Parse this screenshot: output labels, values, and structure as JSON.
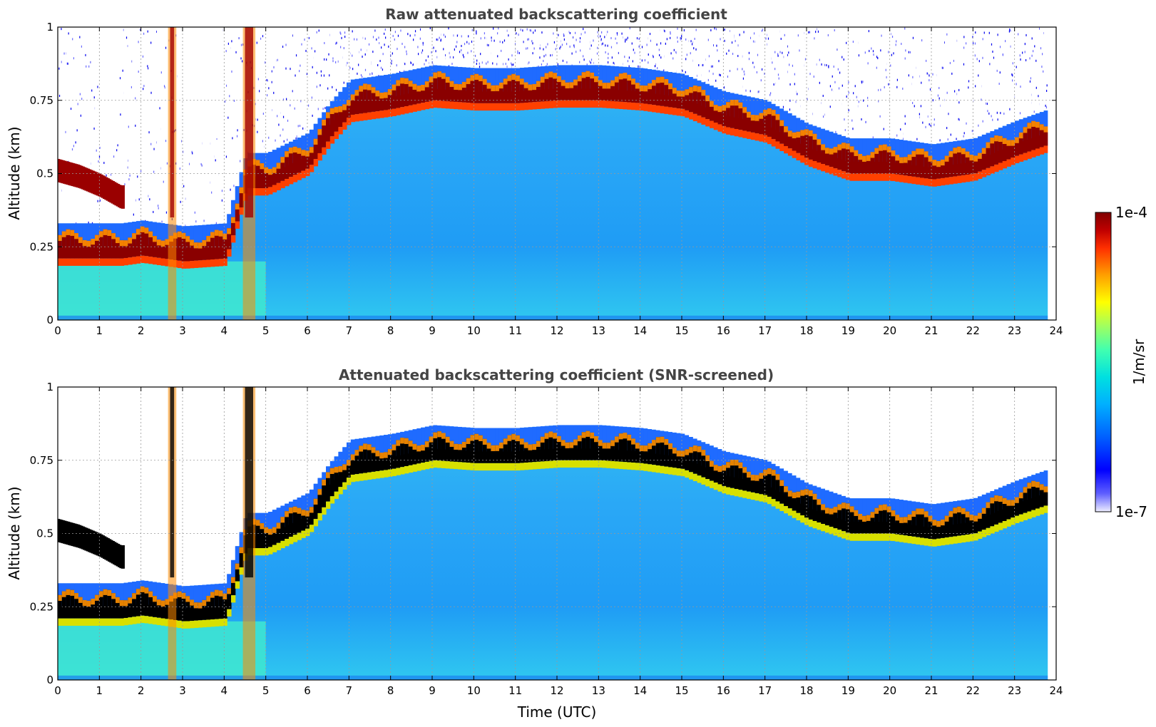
{
  "chart_data": [
    {
      "type": "heatmap",
      "title": "Raw attenuated backscattering coefficient",
      "xlabel": "",
      "ylabel": "Altitude (km)",
      "xlim": [
        0,
        24
      ],
      "ylim": [
        0,
        1
      ],
      "x_ticks": [
        "0",
        "1",
        "2",
        "3",
        "4",
        "5",
        "6",
        "7",
        "8",
        "9",
        "10",
        "11",
        "12",
        "13",
        "14",
        "15",
        "16",
        "17",
        "18",
        "19",
        "20",
        "21",
        "22",
        "23",
        "24"
      ],
      "y_ticks": [
        "0",
        "0.25",
        "0.5",
        "0.75",
        "1"
      ],
      "grid": true,
      "data_end_time": 23.8,
      "layers": [
        {
          "name": "cloud-base",
          "time": [
            0,
            1,
            1.5,
            2,
            3,
            4,
            4.5,
            5,
            6,
            6.5,
            7,
            8,
            9,
            10,
            11,
            12,
            13,
            14,
            15,
            16,
            17,
            18,
            19,
            20,
            21,
            22,
            23,
            23.8
          ],
          "altitude_km": [
            0.21,
            0.21,
            0.21,
            0.22,
            0.2,
            0.21,
            0.45,
            0.45,
            0.52,
            0.62,
            0.7,
            0.72,
            0.75,
            0.74,
            0.74,
            0.75,
            0.75,
            0.74,
            0.72,
            0.66,
            0.63,
            0.55,
            0.5,
            0.5,
            0.48,
            0.5,
            0.56,
            0.6
          ]
        },
        {
          "name": "upper-layer-0-2h",
          "time": [
            0,
            0.5,
            1,
            1.5
          ],
          "altitude_km": [
            0.47,
            0.45,
            0.42,
            0.38
          ]
        }
      ]
    },
    {
      "type": "heatmap",
      "title": "Attenuated backscattering coefficient (SNR-screened)",
      "xlabel": "Time (UTC)",
      "ylabel": "Altitude (km)",
      "xlim": [
        0,
        24
      ],
      "ylim": [
        0,
        1
      ],
      "x_ticks": [
        "0",
        "1",
        "2",
        "3",
        "4",
        "5",
        "6",
        "7",
        "8",
        "9",
        "10",
        "11",
        "12",
        "13",
        "14",
        "15",
        "16",
        "17",
        "18",
        "19",
        "20",
        "21",
        "22",
        "23",
        "24"
      ],
      "y_ticks": [
        "0",
        "0.25",
        "0.5",
        "0.75",
        "1"
      ],
      "grid": true,
      "saturated_color": "#000000",
      "data_end_time": 23.8
    }
  ],
  "colorbar": {
    "label": "1/m/sr",
    "max_label": "1e-4",
    "min_label": "1e-7",
    "scale": "log",
    "colors": [
      "#eeeeff",
      "#6060ff",
      "#0000ff",
      "#0060ff",
      "#00b0ff",
      "#00e0e0",
      "#40ffb0",
      "#a0ff60",
      "#ffff00",
      "#ffa000",
      "#ff3000",
      "#c00000",
      "#800000"
    ]
  }
}
